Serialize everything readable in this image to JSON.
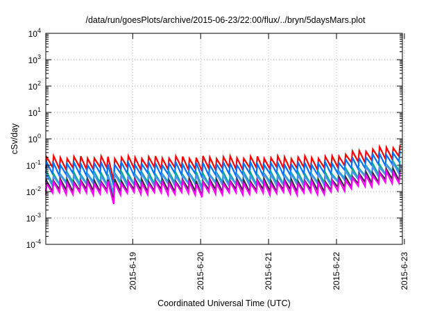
{
  "chart_data": {
    "type": "line",
    "title": "/data/run/goesPlots/archive/2015-06-23/22:00/flux/../bryn/5daysMars.plot",
    "xlabel": "Coordinated Universal Time (UTC)",
    "ylabel": "cSv/day",
    "y_scale": "log",
    "ylim": [
      0.0001,
      10000
    ],
    "y_ticks": [
      {
        "base": "10",
        "exp": "-4"
      },
      {
        "base": "10",
        "exp": "-3"
      },
      {
        "base": "10",
        "exp": "-2"
      },
      {
        "base": "10",
        "exp": "-1"
      },
      {
        "base": "10",
        "exp": "0"
      },
      {
        "base": "10",
        "exp": "1"
      },
      {
        "base": "10",
        "exp": "2"
      },
      {
        "base": "10",
        "exp": "3"
      },
      {
        "base": "10",
        "exp": "4"
      }
    ],
    "xlim": [
      -1.28,
      3.97
    ],
    "x_unit": "days relative to 2015-6-19 00:00 UTC",
    "x_ticks": [
      {
        "label": "2015-6-19",
        "value": 0
      },
      {
        "label": "2015-6-20",
        "value": 1
      },
      {
        "label": "2015-6-21",
        "value": 2
      },
      {
        "label": "2015-6-22",
        "value": 3
      },
      {
        "label": "2015-6-23",
        "value": 4
      }
    ],
    "grid": true,
    "legend": "none",
    "series": [
      {
        "color": "#ff0000",
        "base": 0.115,
        "peak": 0.2,
        "trough": 0.075
      },
      {
        "color": "#0070ff",
        "base": 0.07,
        "peak": 0.115,
        "trough": 0.045
      },
      {
        "color": "#00b080",
        "base": 0.032,
        "peak": 0.05,
        "trough": 0.021
      },
      {
        "color": "#5090ff",
        "base": 0.027,
        "peak": 0.042,
        "trough": 0.018
      },
      {
        "color": "#303030",
        "base": 0.016,
        "peak": 0.027,
        "trough": 0.011
      },
      {
        "color": "#ff00ff",
        "base": 0.013,
        "peak": 0.022,
        "trough": 0.0085
      }
    ],
    "enhancement": {
      "start": 2.9,
      "peak_at": 3.96,
      "peak_factor": 2.8,
      "end": 4.25
    },
    "dips": [
      {
        "at": -0.3,
        "factor": 0.4
      },
      {
        "at": 1.0,
        "factor": 0.7
      }
    ],
    "pulses_per_day": 10
  }
}
